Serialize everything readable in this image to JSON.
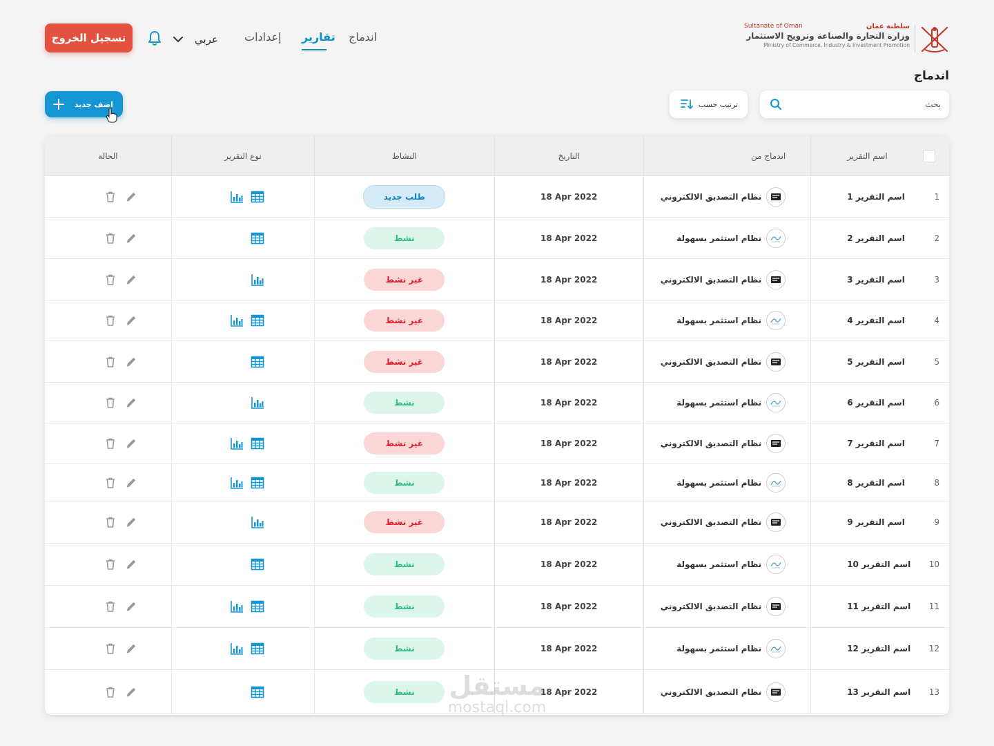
{
  "header": {
    "logout_label": "تسجيل الخروج",
    "language_label": "عربي",
    "nav": [
      {
        "label": "اندماج",
        "active": false
      },
      {
        "label": "تقارير",
        "active": true
      },
      {
        "label": "إعدادات",
        "active": false
      }
    ],
    "logo": {
      "sultanate_en": "Sultanate of Oman",
      "sultanate_ar": "سلطنة عمان",
      "ministry_ar": "وزارة التجارة والصناعة وترويج الاستثمار",
      "ministry_en": "Ministry of Commerce, Industry & Investment Promotion"
    }
  },
  "page_title": "اندماج",
  "toolbar": {
    "search_placeholder": "بحث",
    "sort_label": "ترتيب حسب",
    "add_label": "اضف جديد"
  },
  "table": {
    "columns": {
      "name": "اسم التقرير",
      "source": "اندماج من",
      "date": "التاريخ",
      "activity": "النشاط",
      "type": "نوع التقرير",
      "status": "الحالة"
    },
    "rows": [
      {
        "num": "1",
        "name": "اسم التقرير 1",
        "source": "نظام التصديق الالكتروني",
        "src_kind": "e",
        "date": "18 Apr 2022",
        "activity": "طلب جديد",
        "activity_kind": "new",
        "types": [
          "table",
          "chart"
        ]
      },
      {
        "num": "2",
        "name": "اسم التقرير 2",
        "source": "نظام استثمر بسهولة",
        "src_kind": "i",
        "date": "18 Apr 2022",
        "activity": "نشط",
        "activity_kind": "active",
        "types": [
          "table"
        ]
      },
      {
        "num": "3",
        "name": "اسم التقرير 3",
        "source": "نظام التصديق الالكتروني",
        "src_kind": "e",
        "date": "18 Apr 2022",
        "activity": "غير نشط",
        "activity_kind": "inactive",
        "types": [
          "chart"
        ]
      },
      {
        "num": "4",
        "name": "اسم التقرير 4",
        "source": "نظام استثمر بسهولة",
        "src_kind": "i",
        "date": "18 Apr 2022",
        "activity": "غير نشط",
        "activity_kind": "inactive",
        "types": [
          "table",
          "chart"
        ]
      },
      {
        "num": "5",
        "name": "اسم التقرير 5",
        "source": "نظام التصديق الالكتروني",
        "src_kind": "e",
        "date": "18 Apr 2022",
        "activity": "غير نشط",
        "activity_kind": "inactive",
        "types": [
          "table"
        ]
      },
      {
        "num": "6",
        "name": "اسم التقرير 6",
        "source": "نظام استثمر بسهولة",
        "src_kind": "i",
        "date": "18 Apr 2022",
        "activity": "نشط",
        "activity_kind": "active",
        "types": [
          "chart"
        ]
      },
      {
        "num": "7",
        "name": "اسم التقرير 7",
        "source": "نظام التصديق الالكتروني",
        "src_kind": "e",
        "date": "18 Apr 2022",
        "activity": "غير نشط",
        "activity_kind": "inactive",
        "types": [
          "table",
          "chart"
        ]
      },
      {
        "num": "8",
        "name": "اسم التقرير 8",
        "source": "نظام استثمر بسهولة",
        "src_kind": "i",
        "date": "18 Apr 2022",
        "activity": "نشط",
        "activity_kind": "active",
        "types": [
          "table",
          "chart"
        ]
      },
      {
        "num": "9",
        "name": "اسم التقرير 9",
        "source": "نظام التصديق الالكتروني",
        "src_kind": "e",
        "date": "18 Apr 2022",
        "activity": "غير نشط",
        "activity_kind": "inactive",
        "types": [
          "chart"
        ]
      },
      {
        "num": "10",
        "name": "اسم التقرير 10",
        "source": "نظام استثمر بسهولة",
        "src_kind": "i",
        "date": "18 Apr 2022",
        "activity": "نشط",
        "activity_kind": "active",
        "types": [
          "table"
        ]
      },
      {
        "num": "11",
        "name": "اسم التقرير 11",
        "source": "نظام التصديق الالكتروني",
        "src_kind": "e",
        "date": "18 Apr 2022",
        "activity": "نشط",
        "activity_kind": "active",
        "types": [
          "table",
          "chart"
        ]
      },
      {
        "num": "12",
        "name": "اسم التقرير 12",
        "source": "نظام استثمر بسهولة",
        "src_kind": "i",
        "date": "18 Apr 2022",
        "activity": "نشط",
        "activity_kind": "active",
        "types": [
          "table",
          "chart"
        ]
      },
      {
        "num": "13",
        "name": "اسم التقرير 13",
        "source": "نظام التصديق الالكتروني",
        "src_kind": "e",
        "date": "18 Apr 2022",
        "activity": "نشط",
        "activity_kind": "active",
        "types": [
          "table"
        ]
      }
    ]
  },
  "icons": {
    "table_type": "grid-table-icon",
    "chart_type": "bar-chart-icon",
    "edit": "pencil-icon",
    "delete": "trash-icon"
  },
  "colors": {
    "primary": "#1596d2",
    "danger": "#e2523f",
    "active_text": "#2cbb86",
    "inactive_text": "#e0202c",
    "new_text": "#1183c3"
  },
  "watermark": {
    "ar": "مستقل",
    "en": "mostaql.com"
  }
}
